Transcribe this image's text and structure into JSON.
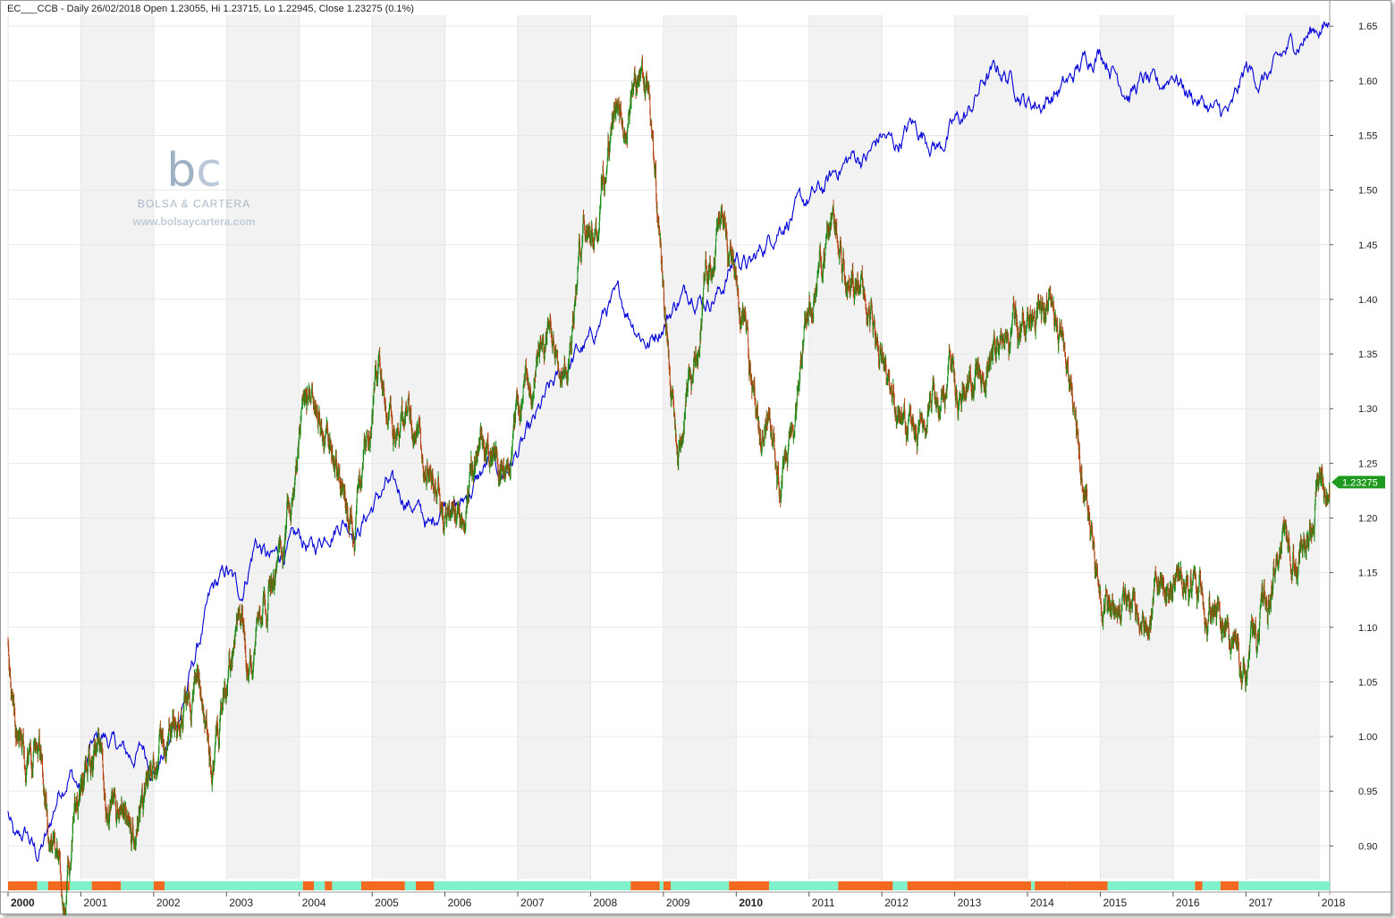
{
  "header": {
    "text": "EC___CCB - Daily 26/02/2018 Open 1.23055, Hi 1.23715, Lo 1.22945, Close 1.23275 (0.1%)"
  },
  "watermark": {
    "logo_b": "b",
    "logo_c": "c",
    "brand": "BOLSA & CARTERA",
    "url": "www.bolsaycartera.com"
  },
  "last_price_label": "1.23275",
  "colors": {
    "candle_up": "#178c17",
    "candle_down": "#b34210",
    "comparison_line": "#0000d8",
    "band_trend_up": "#7ff2cc",
    "band_trend_down": "#f26a1f",
    "price_tag": "#1f9a1f",
    "shade": "#f2f2f2"
  },
  "chart_data": {
    "type": "line",
    "title": "EC___CCB - Daily 26/02/2018 Open 1.23055, Hi 1.23715, Lo 1.22945, Close 1.23275 (0.1%)",
    "ylim": [
      0.87,
      1.66
    ],
    "y_ticks": [
      "0.90",
      "0.95",
      "1.00",
      "1.05",
      "1.10",
      "1.15",
      "1.20",
      "1.25",
      "1.30",
      "1.35",
      "1.40",
      "1.45",
      "1.50",
      "1.55",
      "1.60",
      "1.65"
    ],
    "x_ticks": [
      "2000",
      "2001",
      "2002",
      "2003",
      "2004",
      "2005",
      "2006",
      "2007",
      "2008",
      "2009",
      "2010",
      "2011",
      "2012",
      "2013",
      "2014",
      "2015",
      "2016",
      "2017",
      "2018"
    ],
    "x_ticks_bold": [
      "2000",
      "2010"
    ],
    "grid": true,
    "price_ohlc": {
      "date": "26/02/2018",
      "open": 1.23055,
      "high": 1.23715,
      "low": 1.22945,
      "close": 1.23275,
      "change_pct": 0.1
    },
    "series": [
      {
        "style": "candles",
        "x": [
          2000.0,
          2000.1,
          2000.25,
          2000.4,
          2000.55,
          2000.7,
          2000.8,
          2000.9,
          2001.0,
          2001.2,
          2001.35,
          2001.5,
          2001.7,
          2001.85,
          2002.0,
          2002.2,
          2002.4,
          2002.6,
          2002.8,
          2003.0,
          2003.15,
          2003.35,
          2003.5,
          2003.75,
          2004.0,
          2004.15,
          2004.35,
          2004.55,
          2004.75,
          2004.95,
          2005.1,
          2005.3,
          2005.5,
          2005.7,
          2005.9,
          2006.1,
          2006.3,
          2006.5,
          2006.7,
          2006.9,
          2007.1,
          2007.3,
          2007.5,
          2007.7,
          2007.9,
          2008.1,
          2008.3,
          2008.5,
          2008.6,
          2008.8,
          2008.95,
          2009.1,
          2009.2,
          2009.4,
          2009.6,
          2009.8,
          2009.95,
          2010.1,
          2010.2,
          2010.35,
          2010.45,
          2010.6,
          2010.8,
          2010.95,
          2011.1,
          2011.3,
          2011.5,
          2011.7,
          2011.9,
          2012.1,
          2012.3,
          2012.5,
          2012.7,
          2012.9,
          2013.1,
          2013.3,
          2013.5,
          2013.7,
          2013.9,
          2014.1,
          2014.3,
          2014.5,
          2014.7,
          2014.85,
          2015.0,
          2015.2,
          2015.4,
          2015.6,
          2015.8,
          2016.0,
          2016.2,
          2016.4,
          2016.6,
          2016.8,
          2016.95,
          2017.1,
          2017.3,
          2017.5,
          2017.7,
          2017.9,
          2018.0,
          2018.15
        ],
        "values": [
          1.09,
          1.02,
          0.97,
          1.0,
          0.92,
          0.88,
          0.85,
          0.92,
          0.95,
          1.0,
          0.93,
          0.92,
          0.9,
          0.92,
          0.98,
          1.0,
          1.03,
          1.05,
          0.98,
          1.05,
          1.1,
          1.08,
          1.13,
          1.17,
          1.28,
          1.31,
          1.28,
          1.24,
          1.2,
          1.27,
          1.34,
          1.28,
          1.3,
          1.25,
          1.22,
          1.19,
          1.22,
          1.26,
          1.25,
          1.27,
          1.32,
          1.34,
          1.37,
          1.34,
          1.47,
          1.47,
          1.57,
          1.55,
          1.6,
          1.58,
          1.44,
          1.32,
          1.25,
          1.33,
          1.43,
          1.47,
          1.43,
          1.37,
          1.34,
          1.27,
          1.31,
          1.22,
          1.28,
          1.39,
          1.4,
          1.48,
          1.43,
          1.41,
          1.37,
          1.32,
          1.29,
          1.26,
          1.31,
          1.33,
          1.32,
          1.33,
          1.34,
          1.36,
          1.38,
          1.38,
          1.4,
          1.36,
          1.26,
          1.21,
          1.13,
          1.11,
          1.12,
          1.09,
          1.13,
          1.15,
          1.13,
          1.12,
          1.11,
          1.09,
          1.06,
          1.08,
          1.13,
          1.18,
          1.17,
          1.2,
          1.24,
          1.23275
        ]
      },
      {
        "style": "line",
        "x": [
          2000.0,
          2000.1,
          2000.25,
          2000.4,
          2000.55,
          2000.7,
          2000.85,
          2001.0,
          2001.15,
          2001.3,
          2001.5,
          2001.7,
          2001.85,
          2002.0,
          2002.2,
          2002.4,
          2002.6,
          2002.8,
          2003.0,
          2003.2,
          2003.4,
          2003.6,
          2003.8,
          2004.0,
          2004.2,
          2004.4,
          2004.6,
          2004.8,
          2005.0,
          2005.2,
          2005.4,
          2005.6,
          2005.8,
          2006.0,
          2006.2,
          2006.4,
          2006.6,
          2006.8,
          2007.0,
          2007.2,
          2007.4,
          2007.6,
          2007.8,
          2008.0,
          2008.2,
          2008.4,
          2008.6,
          2008.8,
          2009.0,
          2009.2,
          2009.4,
          2009.6,
          2009.8,
          2010.0,
          2010.2,
          2010.4,
          2010.6,
          2010.8,
          2011.0,
          2011.2,
          2011.4,
          2011.6,
          2011.8,
          2012.0,
          2012.2,
          2012.4,
          2012.6,
          2012.8,
          2013.0,
          2013.2,
          2013.4,
          2013.6,
          2013.8,
          2014.0,
          2014.2,
          2014.4,
          2014.6,
          2014.8,
          2015.0,
          2015.2,
          2015.4,
          2015.6,
          2015.8,
          2016.0,
          2016.2,
          2016.4,
          2016.6,
          2016.8,
          2017.0,
          2017.2,
          2017.4,
          2017.6,
          2017.8,
          2018.0,
          2018.15
        ],
        "values": [
          0.93,
          0.9,
          0.91,
          0.89,
          0.91,
          0.95,
          0.97,
          0.95,
          0.99,
          1.0,
          0.99,
          0.98,
          0.99,
          0.97,
          0.99,
          1.03,
          1.08,
          1.13,
          1.15,
          1.13,
          1.18,
          1.16,
          1.17,
          1.18,
          1.17,
          1.19,
          1.2,
          1.19,
          1.21,
          1.23,
          1.22,
          1.21,
          1.19,
          1.22,
          1.21,
          1.23,
          1.25,
          1.24,
          1.26,
          1.28,
          1.31,
          1.33,
          1.35,
          1.36,
          1.39,
          1.4,
          1.38,
          1.36,
          1.38,
          1.4,
          1.41,
          1.4,
          1.41,
          1.44,
          1.43,
          1.45,
          1.47,
          1.48,
          1.49,
          1.5,
          1.52,
          1.53,
          1.53,
          1.55,
          1.54,
          1.56,
          1.55,
          1.54,
          1.56,
          1.57,
          1.6,
          1.61,
          1.6,
          1.58,
          1.58,
          1.59,
          1.6,
          1.62,
          1.63,
          1.61,
          1.59,
          1.6,
          1.59,
          1.61,
          1.59,
          1.58,
          1.57,
          1.57,
          1.61,
          1.6,
          1.61,
          1.63,
          1.64,
          1.65,
          1.65
        ]
      }
    ],
    "trend_band": [
      {
        "start": 2000.0,
        "end": 2000.4,
        "state": "down"
      },
      {
        "start": 2000.4,
        "end": 2000.55,
        "state": "up"
      },
      {
        "start": 2000.55,
        "end": 2000.85,
        "state": "down"
      },
      {
        "start": 2000.85,
        "end": 2001.15,
        "state": "up"
      },
      {
        "start": 2001.15,
        "end": 2001.55,
        "state": "down"
      },
      {
        "start": 2001.55,
        "end": 2002.0,
        "state": "up"
      },
      {
        "start": 2002.0,
        "end": 2002.15,
        "state": "down"
      },
      {
        "start": 2002.15,
        "end": 2004.05,
        "state": "up"
      },
      {
        "start": 2004.05,
        "end": 2004.2,
        "state": "down"
      },
      {
        "start": 2004.2,
        "end": 2004.35,
        "state": "up"
      },
      {
        "start": 2004.35,
        "end": 2004.45,
        "state": "down"
      },
      {
        "start": 2004.45,
        "end": 2004.85,
        "state": "up"
      },
      {
        "start": 2004.85,
        "end": 2005.45,
        "state": "down"
      },
      {
        "start": 2005.45,
        "end": 2005.6,
        "state": "up"
      },
      {
        "start": 2005.6,
        "end": 2005.85,
        "state": "down"
      },
      {
        "start": 2005.85,
        "end": 2008.55,
        "state": "up"
      },
      {
        "start": 2008.55,
        "end": 2008.95,
        "state": "down"
      },
      {
        "start": 2008.95,
        "end": 2009.0,
        "state": "up"
      },
      {
        "start": 2009.0,
        "end": 2009.1,
        "state": "down"
      },
      {
        "start": 2009.1,
        "end": 2009.9,
        "state": "up"
      },
      {
        "start": 2009.9,
        "end": 2010.45,
        "state": "down"
      },
      {
        "start": 2010.45,
        "end": 2011.4,
        "state": "up"
      },
      {
        "start": 2011.4,
        "end": 2012.15,
        "state": "down"
      },
      {
        "start": 2012.15,
        "end": 2012.35,
        "state": "up"
      },
      {
        "start": 2012.35,
        "end": 2014.05,
        "state": "down"
      },
      {
        "start": 2014.05,
        "end": 2014.1,
        "state": "up"
      },
      {
        "start": 2014.1,
        "end": 2014.55,
        "state": "down"
      },
      {
        "start": 2014.55,
        "end": 2015.1,
        "state": "down"
      },
      {
        "start": 2015.1,
        "end": 2016.3,
        "state": "up"
      },
      {
        "start": 2016.3,
        "end": 2016.4,
        "state": "down"
      },
      {
        "start": 2016.4,
        "end": 2016.65,
        "state": "up"
      },
      {
        "start": 2016.65,
        "end": 2016.9,
        "state": "down"
      },
      {
        "start": 2016.9,
        "end": 2018.2,
        "state": "up"
      }
    ]
  }
}
